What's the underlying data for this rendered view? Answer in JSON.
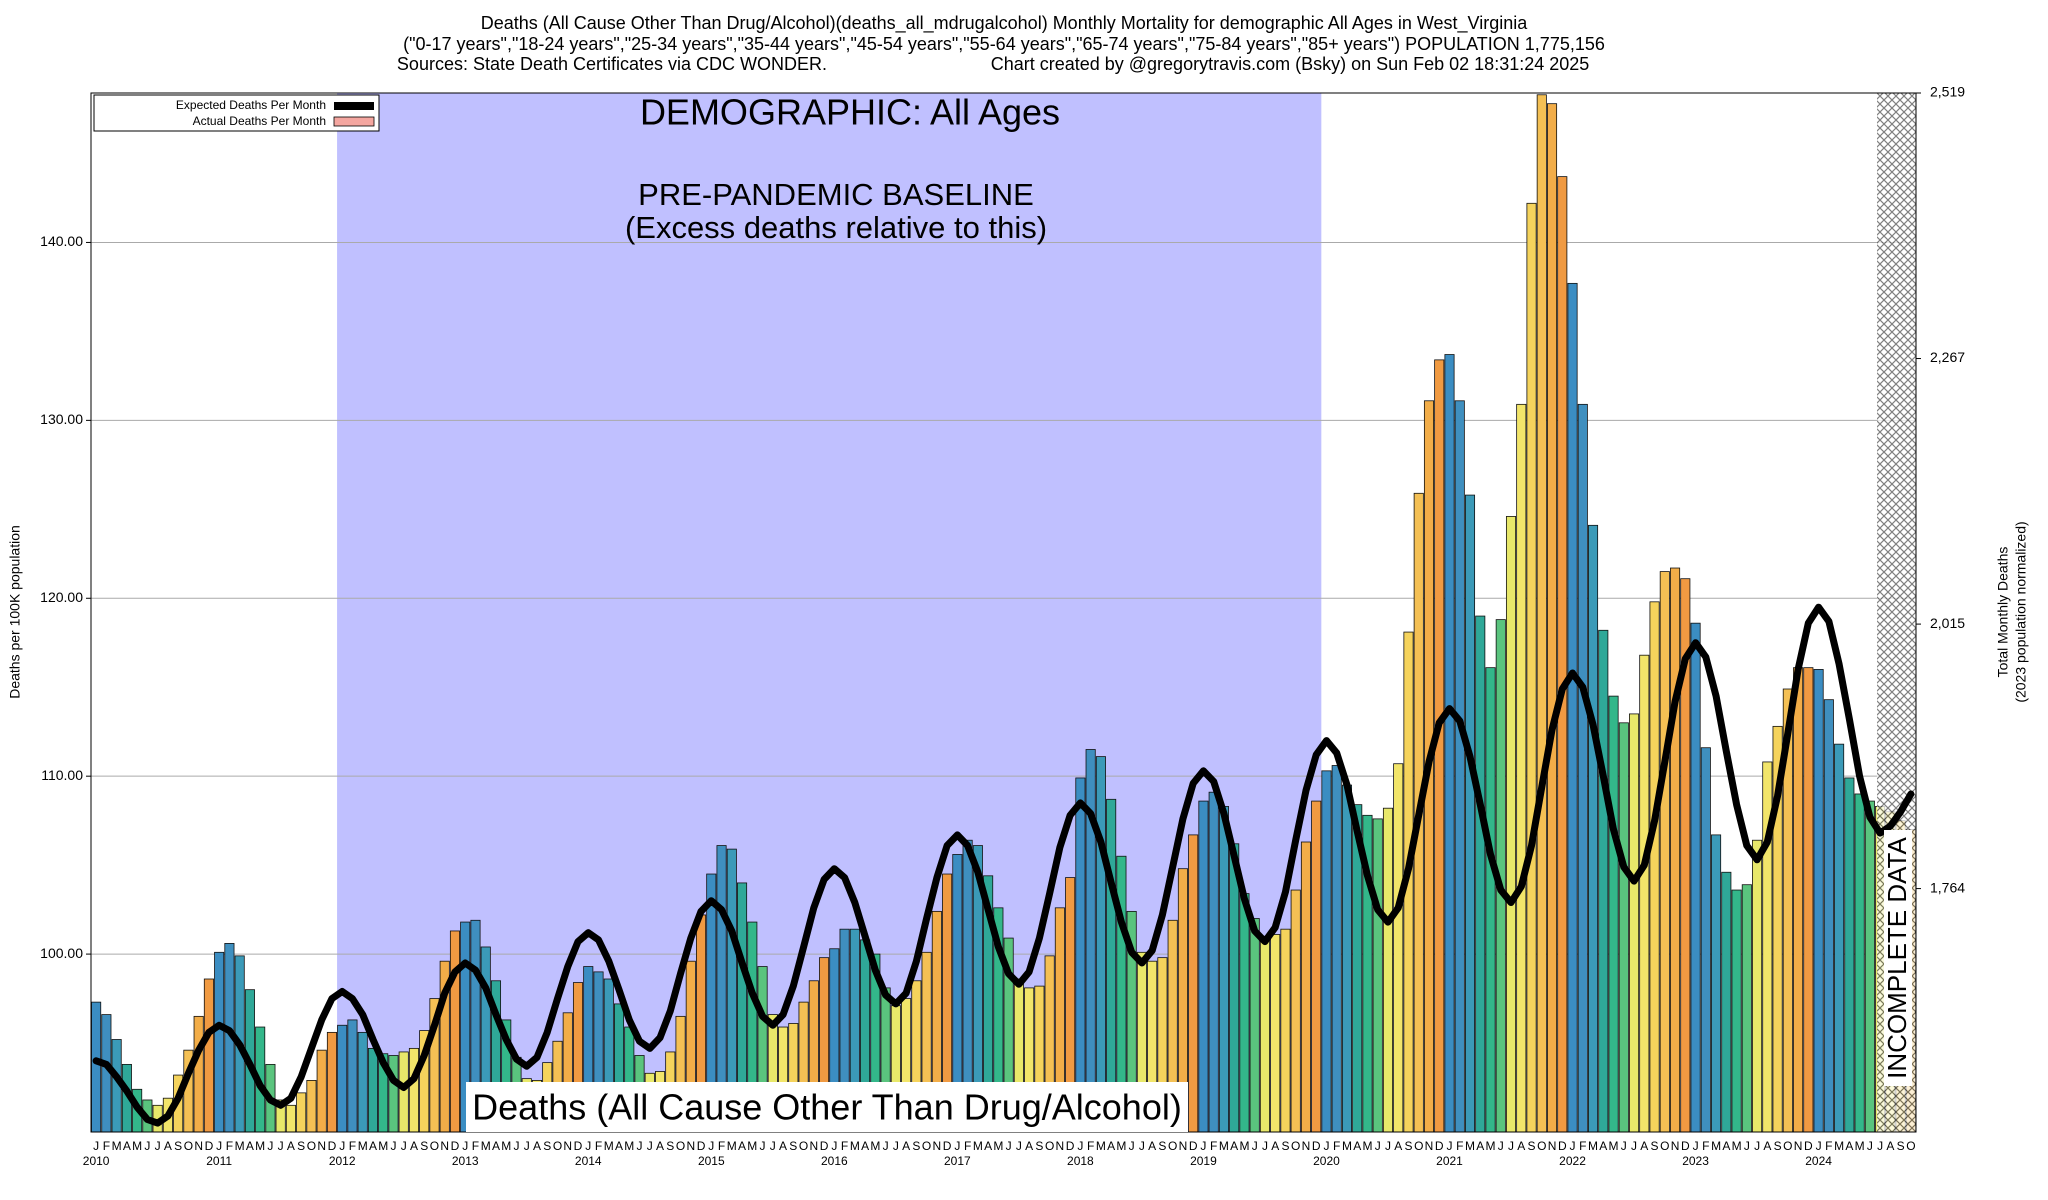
{
  "chart_data": {
    "type": "bar",
    "title": "Deaths (All Cause Other Than Drug/Alcohol)(deaths_all_mdrugalcohol) Monthly Mortality for demographic All Ages in West_Virginia",
    "subtitle": "(\"0-17 years\",\"18-24 years\",\"25-34 years\",\"35-44 years\",\"45-54 years\",\"55-64 years\",\"65-74 years\",\"75-84 years\",\"85+ years\") POPULATION 1,775,156",
    "source": "Sources: State Death Certificates via CDC WONDER.",
    "credit": "Chart created by @gregorytravis.com (Bsky) on Sun Feb 02 18:31:24 2025",
    "annotations": {
      "demographic": "DEMOGRAPHIC: All Ages",
      "baseline": "PRE-PANDEMIC BASELINE",
      "baseline_note": "(Excess deaths relative to this)",
      "metric": "Deaths (All Cause Other Than Drug/Alcohol)",
      "incomplete": "INCOMPLETE DATA"
    },
    "ylabel": "Deaths per 100K population",
    "y2label": [
      "Total Monthly Deaths",
      "(2023 population normalized)"
    ],
    "month_labels": [
      "J",
      "F",
      "M",
      "A",
      "M",
      "J",
      "J",
      "A",
      "S",
      "O",
      "N",
      "D"
    ],
    "month_colors": [
      "#3b8dc2",
      "#3f8fbf",
      "#3b9ab8",
      "#2fa898",
      "#33b78a",
      "#5ac47e",
      "#e8e86a",
      "#f2e56a",
      "#f5d35c",
      "#f4c054",
      "#f2ad48",
      "#f09a42"
    ],
    "years": [
      "2010",
      "2011",
      "2012",
      "2013",
      "2014",
      "2015",
      "2016",
      "2017",
      "2018",
      "2019",
      "2020",
      "2021",
      "2022",
      "2023",
      "2024"
    ],
    "ylim": [
      90,
      148.4
    ],
    "yticks": [
      {
        "value": 100,
        "label": "100.00"
      },
      {
        "value": 110,
        "label": "110.00"
      },
      {
        "value": 120,
        "label": "120.00"
      },
      {
        "value": 130,
        "label": "130.00"
      },
      {
        "value": 140,
        "label": "140.00"
      }
    ],
    "y2lim": [
      1533,
      2519
    ],
    "y2ticks": [
      {
        "value": 1764,
        "label": "1,764"
      },
      {
        "value": 2015,
        "label": "2,015"
      },
      {
        "value": 2267,
        "label": "2,267"
      },
      {
        "value": 2519,
        "label": "2,519"
      }
    ],
    "grid": true,
    "legend": "top-left",
    "series": [
      {
        "name": "Expected Deaths Per Month",
        "color": "#000000",
        "values": [
          94.0,
          93.8,
          93.1,
          92.3,
          91.4,
          90.7,
          90.5,
          90.9,
          91.9,
          93.3,
          94.6,
          95.6,
          96.0,
          95.7,
          94.9,
          93.8,
          92.6,
          91.8,
          91.5,
          91.9,
          93.1,
          94.7,
          96.3,
          97.5,
          97.9,
          97.5,
          96.6,
          95.2,
          93.9,
          92.9,
          92.5,
          93.0,
          94.3,
          96.0,
          97.8,
          99.0,
          99.5,
          99.1,
          98.1,
          96.6,
          95.2,
          94.1,
          93.7,
          94.2,
          95.6,
          97.5,
          99.3,
          100.7,
          101.2,
          100.8,
          99.6,
          98.0,
          96.3,
          95.1,
          94.7,
          95.3,
          96.8,
          98.9,
          100.9,
          102.4,
          103.0,
          102.5,
          101.3,
          99.5,
          97.8,
          96.5,
          96.0,
          96.6,
          98.2,
          100.4,
          102.6,
          104.2,
          104.8,
          104.3,
          102.9,
          101.0,
          99.1,
          97.7,
          97.2,
          97.8,
          99.6,
          102.0,
          104.3,
          106.1,
          106.7,
          106.1,
          104.6,
          102.5,
          100.4,
          98.9,
          98.3,
          99.0,
          100.9,
          103.4,
          106.0,
          107.8,
          108.5,
          107.9,
          106.3,
          104.0,
          101.8,
          100.1,
          99.5,
          100.2,
          102.2,
          104.9,
          107.6,
          109.6,
          110.3,
          109.7,
          107.9,
          105.5,
          103.1,
          101.3,
          100.7,
          101.5,
          103.5,
          106.4,
          109.2,
          111.2,
          112.0,
          111.3,
          109.5,
          106.9,
          104.4,
          102.5,
          101.8,
          102.6,
          104.8,
          107.8,
          110.8,
          113.0,
          113.8,
          113.1,
          111.1,
          108.4,
          105.6,
          103.6,
          102.9,
          103.8,
          106.1,
          109.4,
          112.6,
          114.9,
          115.8,
          115.0,
          112.9,
          110.0,
          107.0,
          104.9,
          104.1,
          105.0,
          107.5,
          110.8,
          114.2,
          116.6,
          117.5,
          116.7,
          114.5,
          111.4,
          108.4,
          106.1,
          105.3,
          106.3,
          108.9,
          112.4,
          116.0,
          118.6,
          119.5,
          118.7,
          116.3,
          113.2,
          110.0,
          107.7,
          106.8,
          107.2,
          108.0,
          109.0
        ]
      },
      {
        "name": "Actual Deaths Per Month",
        "color": "#f4a6a0",
        "values": [
          97.3,
          96.6,
          95.2,
          93.8,
          92.4,
          91.8,
          91.5,
          91.9,
          93.2,
          94.6,
          96.5,
          98.6,
          100.1,
          100.6,
          99.9,
          98.0,
          95.9,
          93.8,
          91.8,
          91.5,
          92.2,
          92.9,
          94.6,
          95.6,
          96.0,
          96.3,
          95.6,
          94.7,
          94.4,
          94.3,
          94.5,
          94.7,
          95.7,
          97.5,
          99.6,
          101.3,
          101.8,
          101.9,
          100.4,
          98.5,
          96.3,
          94.2,
          93.0,
          92.9,
          93.9,
          95.1,
          96.7,
          98.4,
          99.3,
          99.0,
          98.6,
          97.2,
          95.9,
          94.3,
          93.3,
          93.4,
          94.5,
          96.5,
          99.6,
          102.2,
          104.5,
          106.1,
          105.9,
          104.0,
          101.8,
          99.3,
          96.6,
          95.9,
          96.1,
          97.3,
          98.5,
          99.8,
          100.3,
          101.4,
          101.4,
          100.8,
          100.0,
          98.1,
          97.1,
          97.5,
          98.5,
          100.1,
          102.4,
          104.5,
          105.6,
          106.4,
          106.1,
          104.4,
          102.6,
          100.9,
          98.6,
          98.1,
          98.2,
          99.9,
          102.6,
          104.3,
          109.9,
          111.5,
          111.1,
          108.7,
          105.5,
          102.4,
          100.1,
          99.6,
          99.8,
          101.9,
          104.8,
          106.7,
          108.6,
          109.1,
          108.3,
          106.2,
          103.4,
          102.0,
          101.0,
          101.1,
          101.4,
          103.6,
          106.3,
          108.6,
          110.3,
          110.6,
          109.5,
          108.4,
          107.8,
          107.6,
          108.2,
          110.7,
          118.1,
          125.9,
          131.1,
          133.4,
          133.7,
          131.1,
          125.8,
          119.0,
          116.1,
          118.8,
          124.6,
          130.9,
          142.2,
          148.3,
          147.8,
          143.7,
          137.7,
          130.9,
          124.1,
          118.2,
          114.5,
          113.0,
          113.5,
          116.8,
          119.8,
          121.5,
          121.7,
          121.1,
          118.6,
          111.6,
          106.7,
          104.6,
          103.6,
          103.9,
          106.4,
          110.8,
          112.8,
          114.9,
          116.1,
          116.1,
          116.0,
          114.3,
          111.8,
          109.9,
          109.0,
          108.6,
          108.3,
          108.0,
          107.5,
          107.0
        ]
      }
    ]
  }
}
